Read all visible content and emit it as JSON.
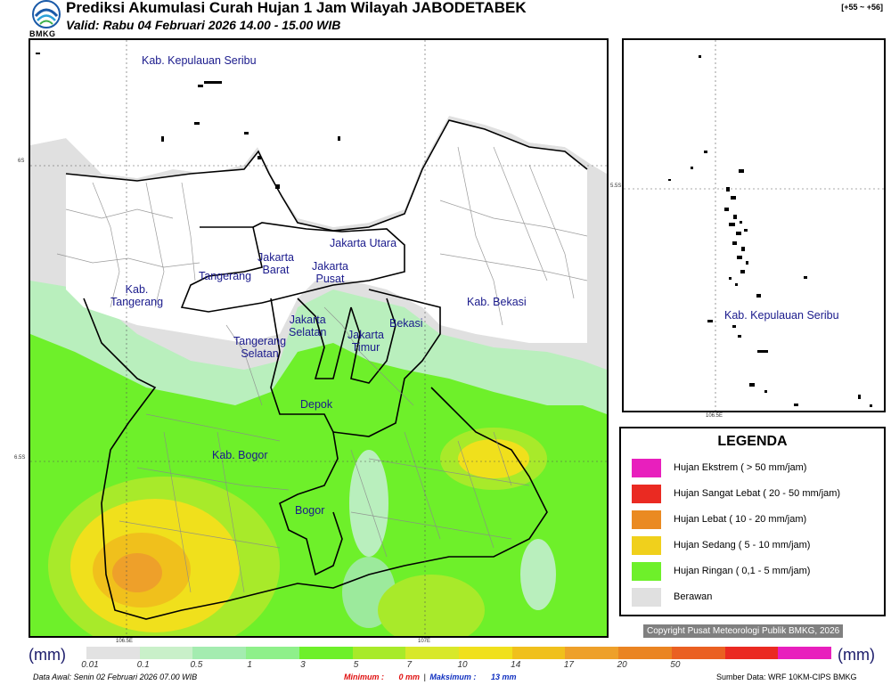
{
  "header": {
    "title": "Prediksi Akumulasi Curah Hujan 1 Jam Wilayah JABODETABEK",
    "valid": "Valid: Rabu 04 Februari 2026 14.00 - 15.00 WIB",
    "badge": "[+55 ~ +56]",
    "logo_text": "BMKG"
  },
  "map": {
    "labels": {
      "kepulauan_seribu": "Kab. Kepulauan Seribu",
      "jakarta_utara": "Jakarta Utara",
      "jakarta_barat": "Jakarta\nBarat",
      "jakarta_pusat": "Jakarta\nPusat",
      "tangerang": "Tangerang",
      "kab_tangerang": "Kab.\nTangerang",
      "kab_bekasi": "Kab. Bekasi",
      "jakarta_selatan": "Jakarta\nSelatan",
      "jakarta_timur": "Jakarta\nTimur",
      "bekasi": "Bekasi",
      "tangerang_selatan": "Tangerang\nSelatan",
      "depok": "Depok",
      "kab_bogor": "Kab. Bogor",
      "bogor": "Bogor"
    },
    "coords": {
      "lat_6s": "6S",
      "lat_65s": "6.5S",
      "lon_1065e": "106.5E",
      "lon_107e": "107E"
    }
  },
  "inset": {
    "label": "Kab. Kepulauan Seribu",
    "lat_55s": "5.5S",
    "lon_1065e": "106.5E"
  },
  "legend": {
    "title": "LEGENDA",
    "items": [
      {
        "label": "Hujan Ekstrem ( > 50 mm/jam)",
        "color": "#e81fbd"
      },
      {
        "label": "Hujan Sangat Lebat ( 20 - 50 mm/jam)",
        "color": "#ea2a22"
      },
      {
        "label": "Hujan Lebat ( 10 - 20 mm/jam)",
        "color": "#ea8a22"
      },
      {
        "label": "Hujan Sedang ( 5 - 10 mm/jam)",
        "color": "#f0d01c"
      },
      {
        "label": "Hujan Ringan ( 0,1 - 5 mm/jam)",
        "color": "#6ef02a"
      },
      {
        "label": "Berawan",
        "color": "#e0e0e0"
      }
    ]
  },
  "copyright": "Copyright Pusat Meteorologi Publik BMKG, 2026",
  "scale": {
    "unit_left": "(mm)",
    "unit_right": "(mm)",
    "colors": [
      "#e2e2e2",
      "#c9f0c9",
      "#a4ecb0",
      "#8ef08a",
      "#6ef02a",
      "#a8ea2a",
      "#d8e82a",
      "#f0e01c",
      "#f0c01c",
      "#eea02a",
      "#ea8422",
      "#ea6022",
      "#ea2a22",
      "#e81fbd"
    ],
    "ticks": [
      "0.01",
      "0.1",
      "0.5",
      "1",
      "3",
      "5",
      "7",
      "10",
      "14",
      "17",
      "20",
      "50"
    ]
  },
  "footer": {
    "data_awal": "Data Awal: Senin 02 Februari 2026 07.00 WIB",
    "minimum_label": "Minimum :",
    "minimum_value": "0 mm",
    "maksimum_label": "Maksimum :",
    "maksimum_value": "13 mm",
    "sumber": "Sumber Data: WRF 10KM-CIPS BMKG"
  }
}
